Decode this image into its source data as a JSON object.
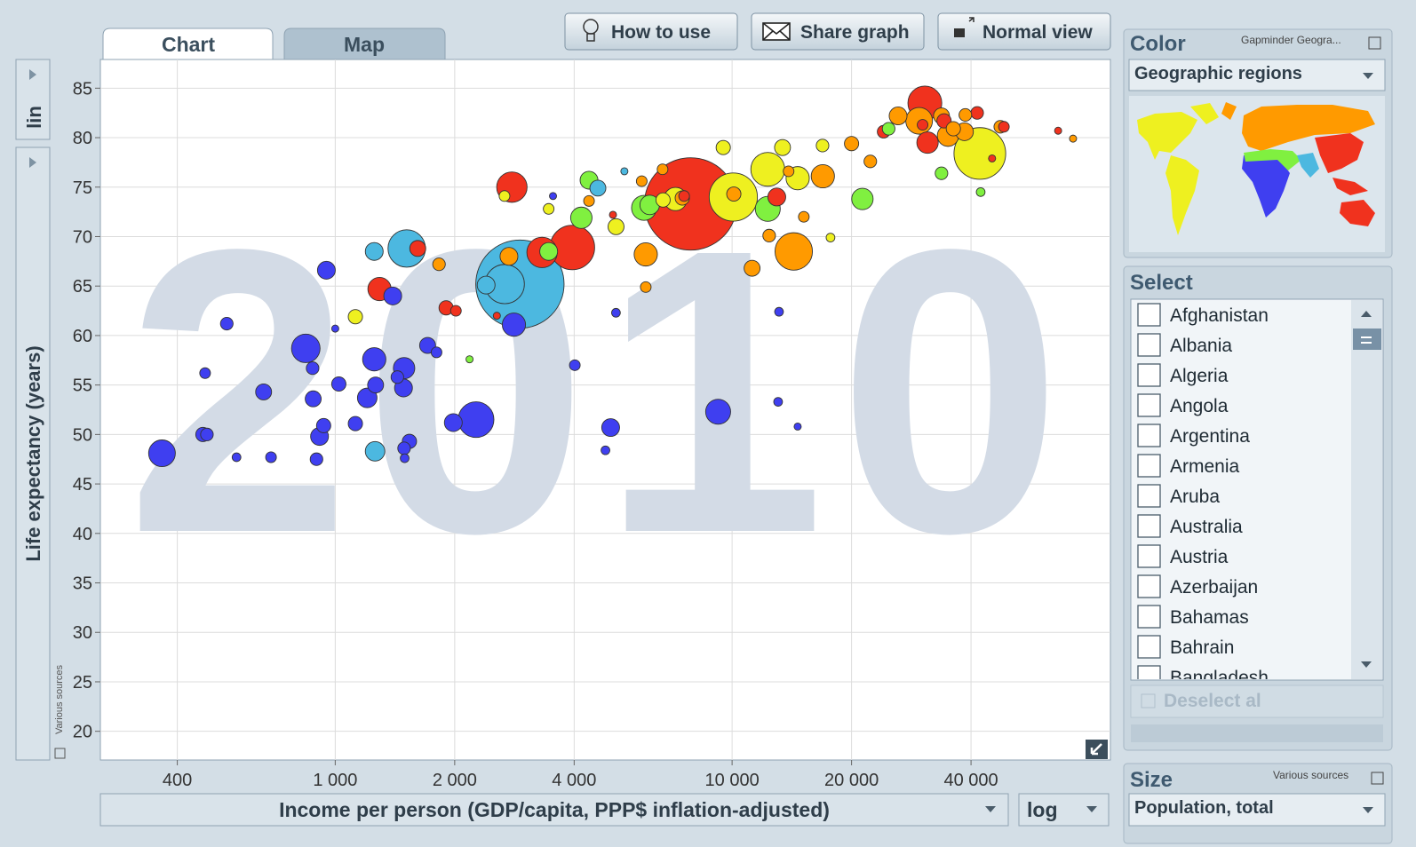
{
  "tabs": [
    "Chart",
    "Map"
  ],
  "buttons": [
    "How to use",
    "Share graph",
    "Normal view"
  ],
  "y_scale": "lin",
  "x_scale": "log",
  "source_left": "Various sources",
  "color_panel": {
    "title": "Color",
    "source": "Gapminder Geogra...",
    "indicator": "Geographic regions"
  },
  "select_panel": {
    "title": "Select",
    "countries": [
      "Afghanistan",
      "Albania",
      "Algeria",
      "Angola",
      "Argentina",
      "Armenia",
      "Aruba",
      "Australia",
      "Austria",
      "Azerbaijan",
      "Bahamas",
      "Bahrain",
      "Bangladesh"
    ],
    "deselect": "Deselect al"
  },
  "size_panel": {
    "title": "Size",
    "source": "Various sources",
    "indicator": "Population, total"
  },
  "chart_data": {
    "type": "bubble",
    "year_label": "2010",
    "xlabel": "Income per person (GDP/capita, PPP$ inflation-adjusted)",
    "ylabel": "Life expectancy (years)",
    "log_x": true,
    "grid": true,
    "xlim": [
      256,
      89800
    ],
    "ylim": [
      17.1,
      87.9
    ],
    "xticks": [
      400,
      {
        "value": 1000,
        "label": "1 000"
      },
      {
        "value": 2000,
        "label": "2 000"
      },
      {
        "value": 4000,
        "label": "4 000"
      },
      {
        "value": 10000,
        "label": "10 000"
      },
      {
        "value": 20000,
        "label": "20 000"
      },
      {
        "value": 40000,
        "label": "40 000"
      }
    ],
    "yticks": [
      20,
      25,
      30,
      35,
      40,
      45,
      50,
      55,
      60,
      65,
      70,
      75,
      80,
      85
    ],
    "series": [
      {
        "color": "#3f3ff0",
        "x": [
          366,
          464,
          475,
          470,
          533,
          564,
          660,
          689,
          843,
          877,
          880,
          913,
          935,
          897,
          950,
          1000,
          1021,
          1124,
          1204,
          1254,
          1264,
          1396,
          1434,
          1491,
          1486,
          1491,
          1496,
          1538,
          1709,
          1800,
          1984,
          2264,
          2820,
          4015,
          4943,
          4796,
          5098,
          9222,
          13060,
          13130,
          14630,
          3538
        ],
        "values": [
          48.1,
          50.0,
          50.0,
          56.2,
          61.2,
          47.7,
          54.3,
          47.7,
          58.7,
          56.7,
          53.6,
          49.8,
          50.9,
          47.5,
          66.6,
          60.7,
          55.1,
          51.1,
          53.7,
          57.6,
          55.0,
          64.0,
          55.8,
          56.7,
          54.7,
          48.6,
          47.6,
          49.3,
          59.0,
          58.3,
          51.2,
          51.5,
          61.1,
          57.0,
          50.7,
          48.4,
          62.3,
          52.3,
          53.3,
          62.4,
          50.8,
          74.1
        ],
        "sizes": [
          112,
          32,
          25,
          18,
          25,
          12,
          40,
          18,
          128,
          25,
          40,
          50,
          32,
          25,
          50,
          8,
          32,
          32,
          60,
          85,
          40,
          50,
          25,
          72,
          50,
          25,
          12,
          32,
          40,
          18,
          50,
          200,
          85,
          18,
          50,
          12,
          12,
          98,
          12,
          12,
          8,
          8
        ]
      },
      {
        "color": "#4cb8e0",
        "x": [
          2920,
          2674,
          1514,
          1254,
          1260,
          2400,
          4590,
          5353
        ],
        "values": [
          65.2,
          65.2,
          68.8,
          68.5,
          48.3,
          65.1,
          74.9,
          76.6
        ],
        "sizes": [
          1224,
          242,
          220,
          50,
          60,
          50,
          40,
          8
        ]
      },
      {
        "color": "#f0321e",
        "x": [
          7860,
          3958,
          2787,
          3320,
          30600,
          31080,
          1293,
          1614,
          1903,
          2014,
          2554,
          5010,
          12960,
          24090,
          41450,
          48400,
          45200,
          66300,
          30200,
          34200,
          7570
        ],
        "values": [
          73.3,
          68.9,
          75.0,
          68.4,
          83.5,
          79.5,
          64.7,
          68.8,
          62.8,
          62.5,
          62.0,
          72.2,
          74.0,
          80.6,
          82.5,
          81.1,
          77.9,
          80.7,
          81.3,
          81.7,
          74.1
        ],
        "sizes": [
          1340,
          312,
          145,
          145,
          180,
          72,
          85,
          40,
          32,
          18,
          8,
          8,
          50,
          25,
          25,
          18,
          8,
          8,
          18,
          32,
          18
        ]
      },
      {
        "color": "#ff9a00",
        "x": [
          14300,
          6060,
          6060,
          6680,
          7490,
          10100,
          11230,
          12400,
          13880,
          15160,
          16930,
          20000,
          22300,
          26200,
          29600,
          33700,
          35000,
          38500,
          38700,
          36100,
          47400,
          72300,
          2740,
          1826,
          4360,
          5920
        ],
        "values": [
          68.5,
          68.2,
          64.9,
          76.8,
          73.9,
          74.3,
          66.8,
          70.1,
          76.6,
          72.0,
          76.1,
          79.4,
          77.6,
          82.2,
          81.7,
          82.2,
          80.2,
          80.6,
          82.3,
          80.9,
          81.1,
          79.9,
          68.0,
          67.2,
          73.6,
          75.6
        ],
        "sizes": [
          220,
          85,
          18,
          18,
          32,
          32,
          40,
          25,
          18,
          18,
          85,
          32,
          25,
          50,
          112,
          40,
          72,
          50,
          25,
          32,
          25,
          8,
          50,
          25,
          18,
          18
        ]
      },
      {
        "color": "#eef020",
        "x": [
          42100,
          10070,
          12300,
          14630,
          13400,
          9500,
          7200,
          6700,
          3450,
          5100,
          1124,
          17700,
          16900,
          2670
        ],
        "values": [
          78.4,
          74.0,
          76.8,
          75.9,
          79.0,
          79.0,
          73.8,
          73.7,
          72.8,
          71.0,
          61.9,
          69.9,
          79.2,
          74.1
        ],
        "sizes": [
          420,
          365,
          180,
          85,
          40,
          32,
          85,
          32,
          18,
          40,
          32,
          12,
          25,
          18
        ]
      },
      {
        "color": "#80f040",
        "x": [
          4170,
          4360,
          6000,
          12300,
          21300,
          33700,
          42300,
          3450,
          2180,
          24800,
          6200
        ],
        "values": [
          71.9,
          75.7,
          72.9,
          72.8,
          73.8,
          76.4,
          74.5,
          68.5,
          57.6,
          80.9,
          73.2
        ],
        "sizes": [
          72,
          50,
          98,
          98,
          72,
          25,
          12,
          50,
          8,
          25,
          60
        ]
      }
    ]
  }
}
